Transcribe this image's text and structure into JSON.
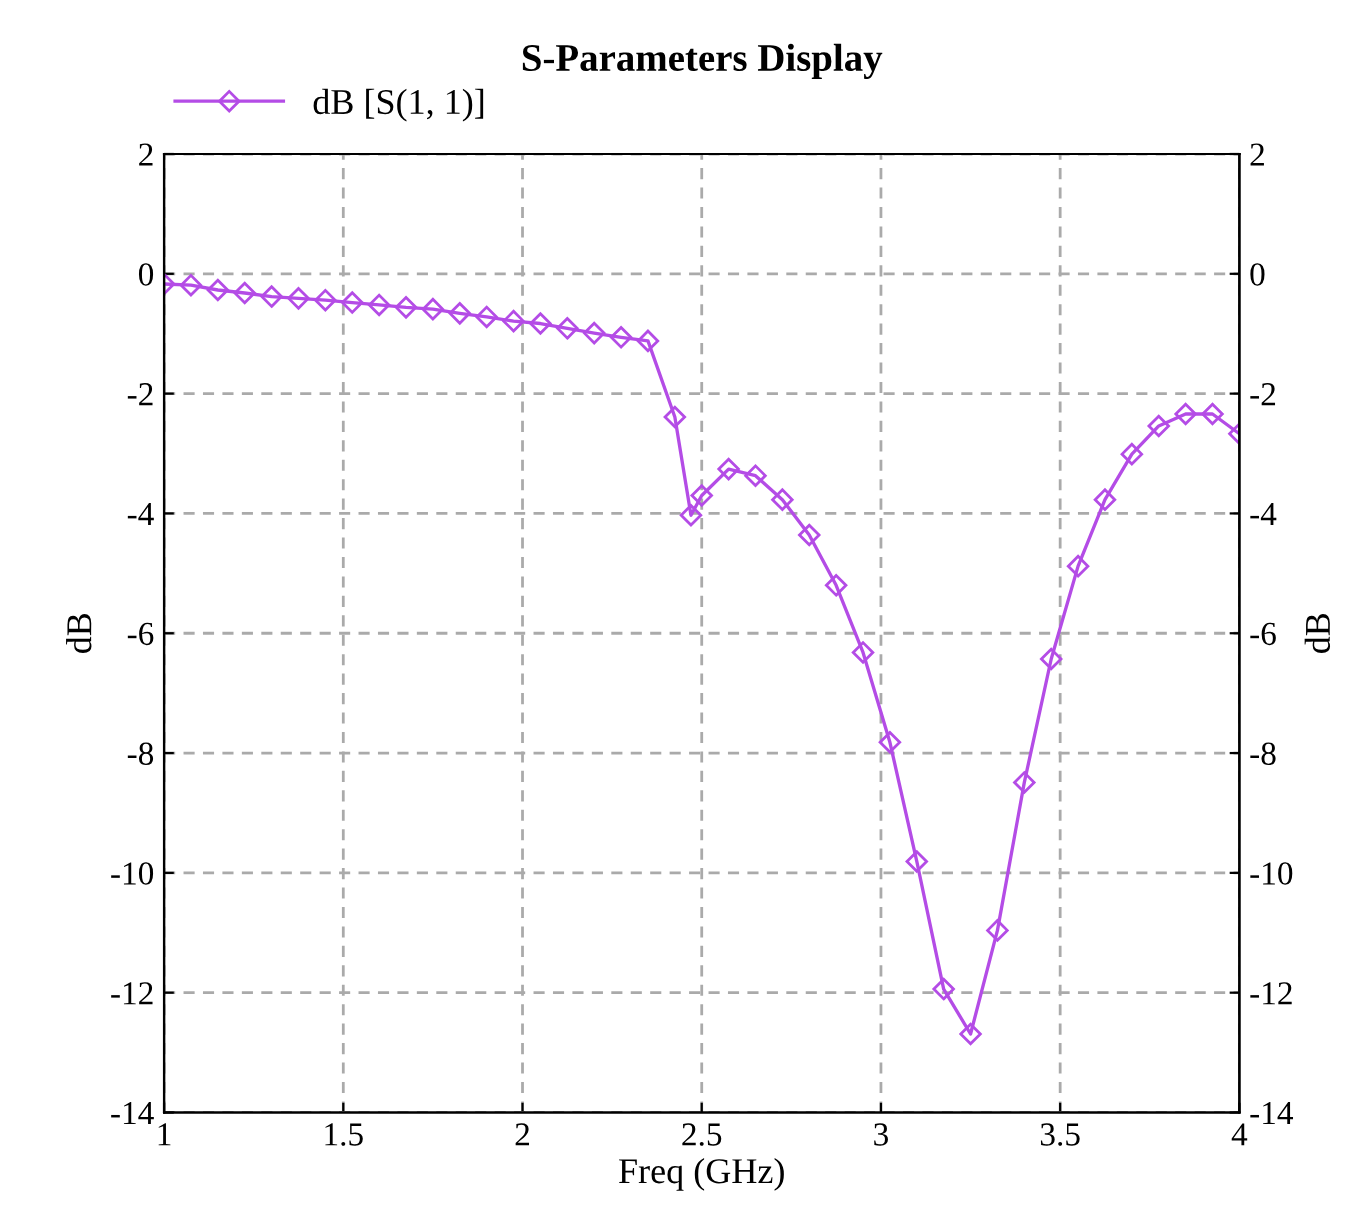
{
  "chart_data": {
    "type": "line",
    "title": "S-Parameters Display",
    "xlabel": "Freq (GHz)",
    "ylabel": "dB",
    "y2label": "dB",
    "x": [
      1,
      1.075,
      1.15,
      1.225,
      1.3,
      1.375,
      1.45,
      1.525,
      1.6,
      1.675,
      1.75,
      1.825,
      1.9,
      1.975,
      2.05,
      2.125,
      2.2,
      2.275,
      2.35,
      2.425,
      2.47,
      2.5,
      2.575,
      2.65,
      2.725,
      2.8,
      2.875,
      2.95,
      3.025,
      3.1,
      3.175,
      3.25,
      3.325,
      3.4,
      3.475,
      3.55,
      3.625,
      3.7,
      3.775,
      3.85,
      3.925,
      4.0
    ],
    "series": [
      {
        "name": "dB [S(1, 1)]",
        "color": "#b44ce6",
        "values": [
          -0.17,
          -0.19,
          -0.27,
          -0.32,
          -0.38,
          -0.41,
          -0.44,
          -0.48,
          -0.52,
          -0.56,
          -0.59,
          -0.66,
          -0.72,
          -0.79,
          -0.83,
          -0.91,
          -0.99,
          -1.06,
          -1.12,
          -2.39,
          -4.03,
          -3.7,
          -3.26,
          -3.37,
          -3.77,
          -4.36,
          -5.2,
          -6.32,
          -7.82,
          -9.81,
          -11.94,
          -12.69,
          -10.96,
          -8.49,
          -6.43,
          -4.88,
          -3.77,
          -3.01,
          -2.54,
          -2.34,
          -2.34,
          -2.67
        ]
      }
    ],
    "xlim": [
      1,
      4
    ],
    "xticks": [
      1,
      1.5,
      2,
      2.5,
      3,
      3.5,
      4
    ],
    "ylim": [
      -14,
      2
    ],
    "yticks": [
      -14,
      -12,
      -10,
      -8,
      -6,
      -4,
      -2,
      0,
      2
    ],
    "y2lim": [
      -14,
      2
    ],
    "y2ticks": [
      -14,
      -12,
      -10,
      -8,
      -6,
      -4,
      -2,
      0,
      2
    ],
    "grid": true,
    "legend": "top left",
    "marker": "diamond",
    "line_style": "solid"
  }
}
